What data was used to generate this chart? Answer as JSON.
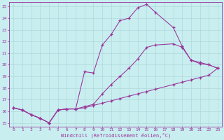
{
  "xlabel": "Windchill (Refroidissement éolien,°C)",
  "bg_color": "#c8eef0",
  "line_color": "#993399",
  "grid_color": "#b0d8db",
  "xmin": 0,
  "xmax": 23,
  "ymin": 15,
  "ymax": 25,
  "yticks": [
    15,
    16,
    17,
    18,
    19,
    20,
    21,
    22,
    23,
    24,
    25
  ],
  "xticks": [
    0,
    1,
    2,
    3,
    4,
    5,
    6,
    7,
    8,
    9,
    10,
    11,
    12,
    13,
    14,
    15,
    16,
    17,
    18,
    19,
    20,
    21,
    22,
    23
  ],
  "lines": [
    {
      "x": [
        0,
        1,
        2,
        3,
        4,
        5,
        6,
        7,
        8,
        9,
        10,
        11,
        12,
        13,
        14,
        15,
        16,
        18,
        19,
        20,
        21,
        22,
        23
      ],
      "y": [
        16.3,
        16.1,
        15.7,
        15.4,
        15.0,
        16.1,
        16.2,
        16.2,
        19.4,
        19.3,
        21.7,
        22.6,
        23.8,
        24.0,
        24.9,
        25.2,
        24.5,
        23.2,
        21.6,
        20.4,
        20.1,
        20.0,
        19.7
      ]
    },
    {
      "x": [
        0,
        1,
        2,
        3,
        4,
        5,
        6,
        7,
        8,
        9,
        10,
        11,
        12,
        13,
        14,
        15,
        16,
        18,
        19,
        20,
        21,
        22,
        23
      ],
      "y": [
        16.3,
        16.1,
        15.7,
        15.4,
        15.0,
        16.1,
        16.2,
        16.2,
        16.4,
        16.6,
        17.5,
        18.3,
        19.0,
        19.7,
        20.5,
        21.5,
        21.7,
        21.8,
        21.5,
        20.4,
        20.2,
        20.0,
        19.7
      ]
    },
    {
      "x": [
        0,
        1,
        2,
        3,
        4,
        5,
        6,
        7,
        8,
        9,
        10,
        11,
        12,
        13,
        14,
        15,
        16,
        18,
        19,
        20,
        21,
        22,
        23
      ],
      "y": [
        16.3,
        16.1,
        15.7,
        15.4,
        15.0,
        16.1,
        16.2,
        16.2,
        16.3,
        16.5,
        16.7,
        16.9,
        17.1,
        17.3,
        17.5,
        17.7,
        17.9,
        18.3,
        18.5,
        18.7,
        18.9,
        19.1,
        19.7
      ]
    }
  ]
}
